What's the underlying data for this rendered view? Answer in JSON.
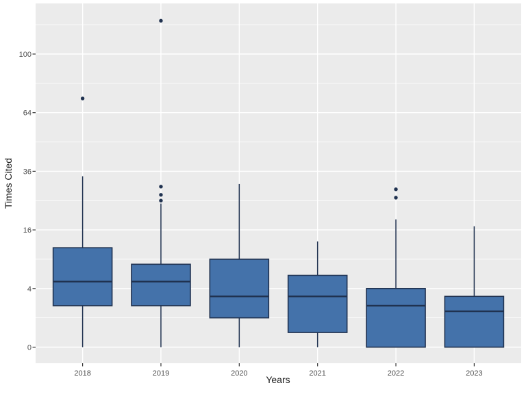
{
  "chart_data": {
    "type": "boxplot",
    "title": "",
    "xlabel": "Years",
    "ylabel": "Times Cited",
    "x_categories": [
      "2018",
      "2019",
      "2020",
      "2021",
      "2022",
      "2023"
    ],
    "y_scale": "sqrt",
    "y_ticks": [
      0,
      4,
      16,
      36,
      64,
      100
    ],
    "y_minor_gridlines": [
      1,
      9,
      25,
      49,
      81,
      121
    ],
    "y_range_shown": [
      0,
      137
    ],
    "grid": "on",
    "legend": "none",
    "series": [
      {
        "category": "2018",
        "whisker_low": 0,
        "q1": 2,
        "median": 5,
        "q3": 11.5,
        "whisker_high": 34,
        "outliers": [
          72
        ]
      },
      {
        "category": "2019",
        "whisker_low": 0,
        "q1": 2,
        "median": 5,
        "q3": 8,
        "whisker_high": 24,
        "outliers": [
          25,
          27,
          30,
          124
        ]
      },
      {
        "category": "2020",
        "whisker_low": 0,
        "q1": 1,
        "median": 3,
        "q3": 9,
        "whisker_high": 31,
        "outliers": []
      },
      {
        "category": "2021",
        "whisker_low": 0,
        "q1": 0.25,
        "median": 3,
        "q3": 6,
        "whisker_high": 13,
        "outliers": []
      },
      {
        "category": "2022",
        "whisker_low": 0,
        "q1": 0,
        "median": 2,
        "q3": 4,
        "whisker_high": 19,
        "outliers": [
          26,
          29
        ]
      },
      {
        "category": "2023",
        "whisker_low": 0,
        "q1": 0,
        "median": 1.5,
        "q3": 3,
        "whisker_high": 17,
        "outliers": []
      }
    ],
    "colors": {
      "box_fill": "#4472aa",
      "box_stroke": "#203250",
      "outlier": "#203250",
      "panel_bg": "#ebebeb",
      "grid": "#ffffff",
      "tick_mark": "#333333",
      "tick_text": "#4d4d4d",
      "axis_title_text": "#1a1a1a",
      "figure_bg": "#ffffff"
    }
  }
}
